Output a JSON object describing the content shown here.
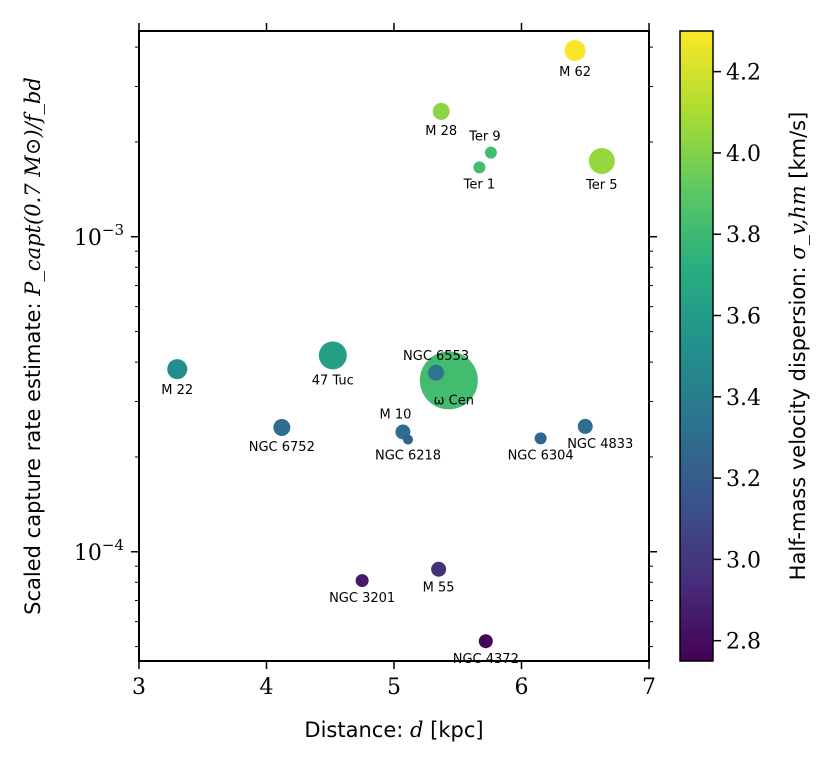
{
  "chart_data": {
    "type": "scatter",
    "xlabel_prefix": "Distance: ",
    "xlabel_var": "d",
    "xlabel_unit": " [kpc]",
    "ylabel_prefix": "Scaled capture rate estimate: ",
    "ylabel_math": "P_capt(0.7 M⊙)/f_bd",
    "colorbar_label_prefix": "Half-mass velocity dispersion: ",
    "colorbar_label_math": "σ_v,hm",
    "colorbar_label_unit": " [km/s]",
    "xlim": [
      3,
      7
    ],
    "ylim": [
      4.5e-05,
      0.0045
    ],
    "yscale": "log",
    "x_ticks": [
      "3",
      "4",
      "5",
      "6",
      "7"
    ],
    "y_ticks": [
      {
        "value": 0.0001,
        "exp": "−4"
      },
      {
        "value": 0.001,
        "exp": "−3"
      }
    ],
    "colorbar": {
      "range": [
        2.75,
        4.3
      ],
      "colormap": "viridis",
      "ticks": [
        "2.8",
        "3.0",
        "3.2",
        "3.4",
        "3.6",
        "3.8",
        "4.0",
        "4.2"
      ]
    },
    "points": [
      {
        "name": "M 62",
        "x": 6.42,
        "y": 0.0039,
        "sigma": 4.29,
        "size": 10.5,
        "label_pos": "below",
        "label_color": "#000000"
      },
      {
        "name": "M 28",
        "x": 5.37,
        "y": 0.0025,
        "sigma": 4.02,
        "size": 8.5,
        "label_pos": "below",
        "label_color": "#000000"
      },
      {
        "name": "Ter 9",
        "x": 5.76,
        "y": 0.00185,
        "sigma": 3.82,
        "size": 6,
        "label_pos": "above-left",
        "label_color": "#000000"
      },
      {
        "name": "Ter 1",
        "x": 5.67,
        "y": 0.00166,
        "sigma": 3.82,
        "size": 6,
        "label_pos": "below",
        "label_color": "#000000"
      },
      {
        "name": "Ter 5",
        "x": 6.63,
        "y": 0.00174,
        "sigma": 4.05,
        "size": 13,
        "label_pos": "below",
        "label_color": "#000000"
      },
      {
        "name": "47 Tuc",
        "x": 4.52,
        "y": 0.00042,
        "sigma": 3.62,
        "size": 14,
        "label_pos": "below",
        "label_color": "#ff0000"
      },
      {
        "name": "M 22",
        "x": 3.3,
        "y": 0.00038,
        "sigma": 3.5,
        "size": 10,
        "label_pos": "below",
        "label_color": "#000000"
      },
      {
        "name": "ω Cen",
        "x": 5.43,
        "y": 0.00035,
        "sigma": 3.82,
        "size": 29,
        "label_pos": "inside-below",
        "label_color": "#000000"
      },
      {
        "name": "NGC 6553",
        "x": 5.33,
        "y": 0.00037,
        "sigma": 3.35,
        "size": 8,
        "label_pos": "above",
        "label_color": "#000000"
      },
      {
        "name": "M 10",
        "x": 5.07,
        "y": 0.00024,
        "sigma": 3.3,
        "size": 7.5,
        "label_pos": "above-left",
        "label_color": "#000000"
      },
      {
        "name": "NGC 6218",
        "x": 5.11,
        "y": 0.000227,
        "sigma": 3.22,
        "size": 5,
        "label_pos": "below",
        "label_color": "#000000"
      },
      {
        "name": "NGC 6752",
        "x": 4.12,
        "y": 0.000248,
        "sigma": 3.3,
        "size": 8.5,
        "label_pos": "below",
        "label_color": "#000000"
      },
      {
        "name": "NGC 6304",
        "x": 6.15,
        "y": 0.000229,
        "sigma": 3.25,
        "size": 6,
        "label_pos": "below",
        "label_color": "#000000"
      },
      {
        "name": "NGC 4833",
        "x": 6.5,
        "y": 0.00025,
        "sigma": 3.3,
        "size": 7.5,
        "label_pos": "below-right",
        "label_color": "#000000"
      },
      {
        "name": "M 55",
        "x": 5.35,
        "y": 8.8e-05,
        "sigma": 2.96,
        "size": 7.5,
        "label_pos": "below",
        "label_color": "#000000"
      },
      {
        "name": "NGC 3201",
        "x": 4.75,
        "y": 8.1e-05,
        "sigma": 2.85,
        "size": 6.5,
        "label_pos": "below",
        "label_color": "#000000"
      },
      {
        "name": "NGC 4372",
        "x": 5.72,
        "y": 5.2e-05,
        "sigma": 2.77,
        "size": 7,
        "label_pos": "below",
        "label_color": "#000000"
      }
    ]
  }
}
